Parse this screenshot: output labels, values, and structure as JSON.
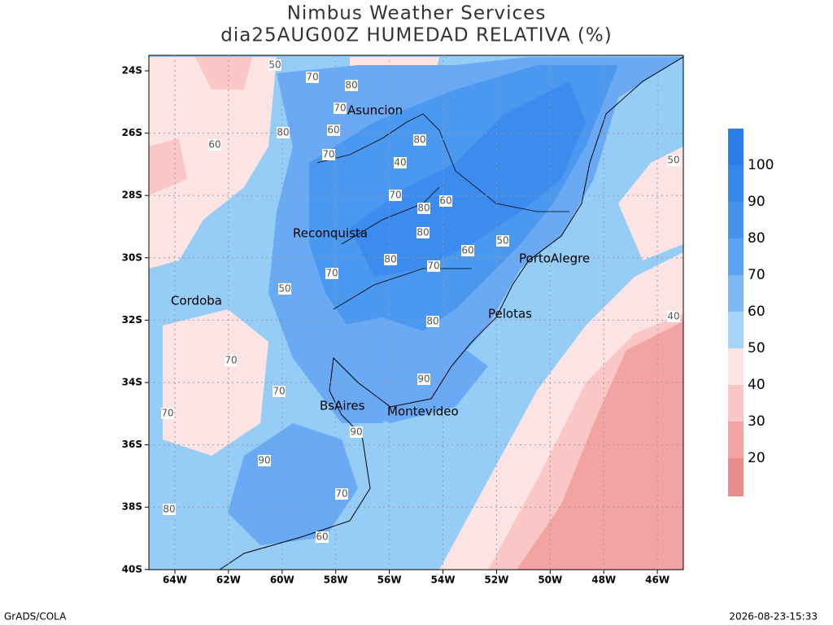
{
  "header": {
    "title": "Nimbus Weather Services",
    "subtitle": "dia25AUG00Z HUMEDAD RELATIVA (%)"
  },
  "map": {
    "lat_labels": [
      "24S",
      "26S",
      "28S",
      "30S",
      "32S",
      "34S",
      "36S",
      "38S",
      "40S"
    ],
    "lon_labels": [
      "64W",
      "62W",
      "60W",
      "58W",
      "56W",
      "54W",
      "52W",
      "50W",
      "48W",
      "46W"
    ],
    "cities": [
      "Asuncion",
      "Reconquista",
      "PortoAlegre",
      "Cordoba",
      "Pelotas",
      "BsAires",
      "Montevideo"
    ],
    "contour_labels": [
      "50",
      "70",
      "80",
      "70",
      "60",
      "80",
      "70",
      "40",
      "80",
      "60",
      "80",
      "70",
      "80",
      "60",
      "50",
      "70",
      "80",
      "70",
      "80",
      "90",
      "90",
      "90",
      "70",
      "80",
      "60",
      "70",
      "70",
      "70",
      "50",
      "60",
      "40",
      "50"
    ]
  },
  "colorbar": {
    "labels": [
      100,
      90,
      80,
      70,
      60,
      50,
      40,
      30,
      20
    ]
  },
  "footer": {
    "left": "GrADS/COLA",
    "right": "2026-08-23-15:33"
  }
}
